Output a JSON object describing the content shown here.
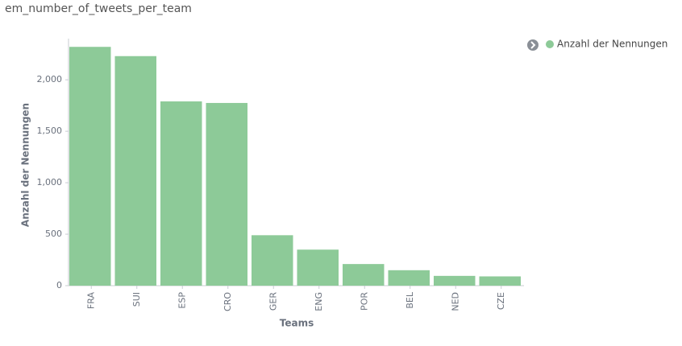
{
  "chart_data": {
    "type": "bar",
    "title": "em_number_of_tweets_per_team",
    "x_label": "Teams",
    "y_label": "Anzahl der Nennungen",
    "categories": [
      "FRA",
      "SUI",
      "ESP",
      "CRO",
      "GER",
      "ENG",
      "POR",
      "BEL",
      "NED",
      "CZE"
    ],
    "series": [
      {
        "name": "Anzahl der Nennungen",
        "color": "#8dca98",
        "values": [
          2320,
          2230,
          1790,
          1775,
          490,
          350,
          210,
          150,
          95,
          90
        ]
      }
    ],
    "ylim": [
      0,
      2400
    ],
    "yticks": [
      0,
      500,
      {
        "value": 1000,
        "label": "1,000"
      },
      {
        "value": 1500,
        "label": "1,500"
      },
      {
        "value": 2000,
        "label": "2,000"
      }
    ],
    "grid": false,
    "legend": "top-right"
  }
}
